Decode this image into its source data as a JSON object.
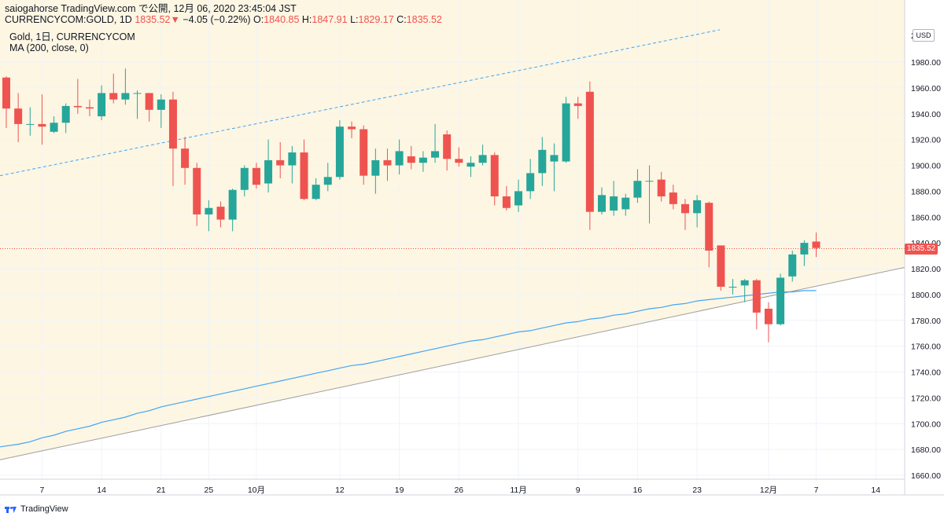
{
  "header": {
    "line1": "saiogahorse TradingView.com で公開, 12月 06, 2020 23:45:04 JST",
    "symbol": "CURRENCYCOM:GOLD, 1D",
    "last": "1835.52",
    "change_arrow": "▼",
    "change": "−4.05 (−0.22%)",
    "o_label": "O:",
    "o_val": "1840.85",
    "h_label": "H:",
    "h_val": "1847.91",
    "l_label": "L:",
    "l_val": "1829.17",
    "c_label": "C:",
    "c_val": "1835.52"
  },
  "legend": {
    "series_title": "Gold, 1日, CURRENCYCOM",
    "indicator": "MA (200, close, 0)"
  },
  "axis": {
    "currency": "USD",
    "last_price_label": "1835.52",
    "top_clipped_label": "2000"
  },
  "footer": {
    "brand": "TradingView"
  },
  "colors": {
    "up": "#26a69a",
    "down": "#ef5350",
    "ma": "#42a5f5",
    "channel_fill": "#fdf6e3",
    "channel_line": "#9e9e9e",
    "channel_upper_dashed": "#42a5f5",
    "grid": "#f0f3fa"
  },
  "chart_data": {
    "type": "candlestick",
    "ylim": [
      1650,
      2005
    ],
    "y_ticks": [
      1660,
      1680,
      1700,
      1720,
      1740,
      1760,
      1780,
      1800,
      1820,
      1840,
      1860,
      1880,
      1900,
      1920,
      1940,
      1960,
      1980
    ],
    "x_tick_labels": [
      {
        "label": "7",
        "index": 3
      },
      {
        "label": "14",
        "index": 8
      },
      {
        "label": "21",
        "index": 13
      },
      {
        "label": "25",
        "index": 17
      },
      {
        "label": "10月",
        "index": 21
      },
      {
        "label": "12",
        "index": 28
      },
      {
        "label": "19",
        "index": 33
      },
      {
        "label": "26",
        "index": 38
      },
      {
        "label": "11月",
        "index": 43
      },
      {
        "label": "9",
        "index": 48
      },
      {
        "label": "16",
        "index": 53
      },
      {
        "label": "23",
        "index": 58
      },
      {
        "label": "12月",
        "index": 64
      },
      {
        "label": "7",
        "index": 68
      },
      {
        "label": "14",
        "index": 73
      }
    ],
    "candles": [
      [
        1968,
        1969,
        1929,
        1944
      ],
      [
        1944,
        1956,
        1918,
        1932
      ],
      [
        1932,
        1945,
        1923,
        1932
      ],
      [
        1932,
        1955,
        1916,
        1930
      ],
      [
        1926,
        1938,
        1925,
        1933
      ],
      [
        1933,
        1948,
        1925,
        1946
      ],
      [
        1946,
        1967,
        1940,
        1945
      ],
      [
        1945,
        1951,
        1938,
        1944
      ],
      [
        1938,
        1962,
        1935,
        1956
      ],
      [
        1956,
        1971,
        1948,
        1951
      ],
      [
        1951,
        1975,
        1947,
        1956
      ],
      [
        1956,
        1958,
        1936,
        1956
      ],
      [
        1956,
        1956,
        1934,
        1943
      ],
      [
        1943,
        1955,
        1929,
        1951
      ],
      [
        1951,
        1957,
        1884,
        1913
      ],
      [
        1913,
        1922,
        1885,
        1898
      ],
      [
        1898,
        1902,
        1853,
        1862
      ],
      [
        1862,
        1873,
        1849,
        1867
      ],
      [
        1868,
        1872,
        1852,
        1858
      ],
      [
        1858,
        1882,
        1849,
        1881
      ],
      [
        1881,
        1900,
        1876,
        1898
      ],
      [
        1898,
        1902,
        1882,
        1885
      ],
      [
        1886,
        1920,
        1879,
        1904
      ],
      [
        1904,
        1918,
        1890,
        1900
      ],
      [
        1900,
        1915,
        1886,
        1910
      ],
      [
        1910,
        1920,
        1873,
        1874
      ],
      [
        1874,
        1890,
        1873,
        1885
      ],
      [
        1885,
        1902,
        1880,
        1891
      ],
      [
        1891,
        1935,
        1889,
        1930
      ],
      [
        1930,
        1934,
        1921,
        1928
      ],
      [
        1928,
        1931,
        1885,
        1892
      ],
      [
        1892,
        1913,
        1878,
        1904
      ],
      [
        1904,
        1913,
        1888,
        1900
      ],
      [
        1900,
        1920,
        1893,
        1911
      ],
      [
        1907,
        1915,
        1897,
        1902
      ],
      [
        1902,
        1911,
        1895,
        1906
      ],
      [
        1906,
        1932,
        1902,
        1911
      ],
      [
        1924,
        1927,
        1896,
        1905
      ],
      [
        1905,
        1914,
        1899,
        1902
      ],
      [
        1899,
        1907,
        1891,
        1902
      ],
      [
        1902,
        1916,
        1900,
        1908
      ],
      [
        1908,
        1910,
        1869,
        1876
      ],
      [
        1876,
        1884,
        1865,
        1867
      ],
      [
        1869,
        1889,
        1864,
        1880
      ],
      [
        1880,
        1905,
        1874,
        1894
      ],
      [
        1894,
        1922,
        1884,
        1912
      ],
      [
        1903,
        1917,
        1880,
        1908
      ],
      [
        1903,
        1953,
        1902,
        1948
      ],
      [
        1948,
        1953,
        1936,
        1946
      ],
      [
        1957,
        1965,
        1850,
        1864
      ],
      [
        1864,
        1883,
        1862,
        1877
      ],
      [
        1865,
        1888,
        1861,
        1876
      ],
      [
        1866,
        1878,
        1861,
        1875
      ],
      [
        1875,
        1897,
        1871,
        1888
      ],
      [
        1888,
        1900,
        1855,
        1888
      ],
      [
        1889,
        1895,
        1872,
        1876
      ],
      [
        1879,
        1885,
        1866,
        1870
      ],
      [
        1870,
        1874,
        1850,
        1863
      ],
      [
        1863,
        1877,
        1852,
        1873
      ],
      [
        1871,
        1872,
        1821,
        1834
      ],
      [
        1838,
        1838,
        1803,
        1806
      ],
      [
        1806,
        1812,
        1800,
        1806
      ],
      [
        1807,
        1812,
        1794,
        1811
      ],
      [
        1811,
        1812,
        1773,
        1786
      ],
      [
        1789,
        1794,
        1763,
        1777
      ],
      [
        1777,
        1816,
        1776,
        1813
      ],
      [
        1814,
        1834,
        1810,
        1831
      ],
      [
        1831,
        1842,
        1822,
        1840
      ],
      [
        1841,
        1848,
        1829,
        1836
      ]
    ],
    "ma200": [
      1682,
      1684,
      1686,
      1689,
      1691,
      1694,
      1696,
      1698,
      1701,
      1703,
      1705,
      1708,
      1710,
      1713,
      1715,
      1717,
      1719,
      1721,
      1723,
      1725,
      1727,
      1729,
      1731,
      1733,
      1735,
      1737,
      1739,
      1741,
      1743,
      1745,
      1746,
      1748,
      1750,
      1752,
      1754,
      1756,
      1758,
      1760,
      1762,
      1764,
      1765,
      1767,
      1769,
      1771,
      1772,
      1774,
      1776,
      1778,
      1779,
      1781,
      1782,
      1784,
      1785,
      1787,
      1789,
      1790,
      1792,
      1793,
      1795,
      1796,
      1797,
      1798,
      1799,
      1800,
      1801,
      1802,
      1802,
      1803,
      1803
    ],
    "channel_lower": [
      1672,
      1821
    ],
    "channel_upper_dashed": [
      1892,
      2005
    ],
    "last_price": 1835.52
  }
}
